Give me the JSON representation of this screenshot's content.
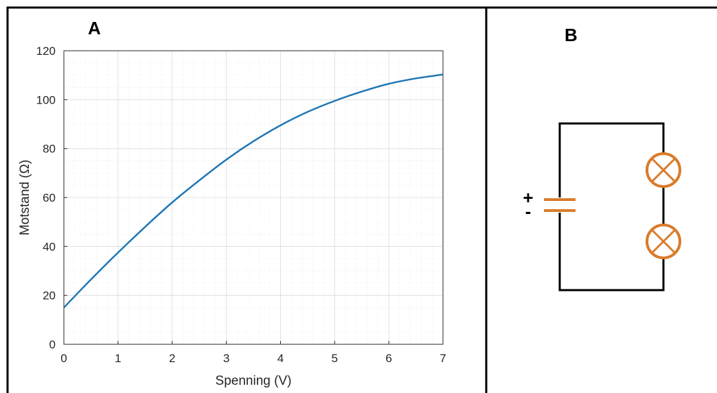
{
  "panels": {
    "a_label": "A",
    "b_label": "B"
  },
  "chart_data": {
    "type": "line",
    "xlabel": "Spenning (V)",
    "ylabel": "Motstand (Ω)",
    "xlim": [
      0,
      7
    ],
    "ylim": [
      0,
      120
    ],
    "xticks": [
      "0",
      "1",
      "2",
      "3",
      "4",
      "5",
      "6",
      "7"
    ],
    "yticks": [
      "0",
      "20",
      "40",
      "60",
      "80",
      "100",
      "120"
    ],
    "grid": true,
    "minor_grid": true,
    "series": [
      {
        "color": "#1f77b4",
        "x": [
          0,
          0.5,
          1,
          1.5,
          2,
          2.5,
          3,
          3.5,
          4,
          4.5,
          5,
          5.5,
          6,
          6.5,
          7
        ],
        "y": [
          15,
          26.5,
          37.5,
          48,
          58,
          67,
          75.5,
          83,
          89.5,
          95,
          99.5,
          103.3,
          106.5,
          108.7,
          110.3
        ]
      }
    ]
  },
  "circuit": {
    "plus_sign": "+",
    "minus_sign": "-",
    "wire_color": "#000000",
    "component_color": "#d97c2b",
    "components": [
      "battery",
      "lamp",
      "lamp"
    ]
  }
}
